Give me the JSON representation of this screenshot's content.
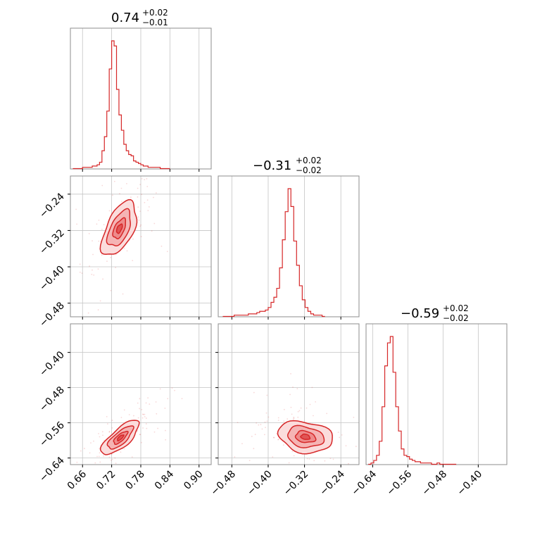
{
  "chart_data": {
    "type": "corner",
    "color": "#d62728",
    "parameters": [
      {
        "id": "p0",
        "range": [
          0.635,
          0.925
        ],
        "ticks": [
          0.66,
          0.72,
          0.78,
          0.84,
          0.9
        ],
        "tick_labels": [
          "0.66",
          "0.72",
          "0.78",
          "0.84",
          "0.90"
        ],
        "title": {
          "value": "0.74",
          "plus": "+0.02",
          "minus": "−0.01"
        },
        "hist": {
          "start": 0.64,
          "step": 0.005,
          "values": [
            0,
            0,
            0,
            0,
            0.01,
            0.01,
            0.01,
            0.01,
            0.02,
            0.02,
            0.03,
            0.05,
            0.14,
            0.25,
            0.45,
            0.78,
            1.0,
            0.96,
            0.62,
            0.42,
            0.3,
            0.19,
            0.14,
            0.11,
            0.1,
            0.06,
            0.05,
            0.04,
            0.03,
            0.02,
            0.02,
            0.01,
            0.01,
            0.01,
            0.01,
            0.01,
            0,
            0,
            0,
            0
          ]
        }
      },
      {
        "id": "p1",
        "range": [
          -0.51,
          -0.2
        ],
        "ticks": [
          -0.48,
          -0.4,
          -0.32,
          -0.24
        ],
        "tick_labels": [
          "−0.48",
          "−0.40",
          "−0.32",
          "−0.24"
        ],
        "title": {
          "value": "−0.31",
          "plus": "+0.02",
          "minus": "−0.02"
        },
        "hist": {
          "start": -0.5,
          "step": 0.00625,
          "values": [
            0,
            0,
            0,
            0,
            0.01,
            0.01,
            0.01,
            0.01,
            0.01,
            0.02,
            0.02,
            0.02,
            0.03,
            0.04,
            0.04,
            0.05,
            0.07,
            0.11,
            0.15,
            0.22,
            0.38,
            0.6,
            0.82,
            1.0,
            0.86,
            0.59,
            0.4,
            0.24,
            0.13,
            0.07,
            0.04,
            0.02,
            0.01,
            0.01,
            0.01,
            0
          ]
        }
      },
      {
        "id": "p2",
        "range": [
          -0.655,
          -0.335
        ],
        "ticks": [
          -0.64,
          -0.56,
          -0.48,
          -0.4
        ],
        "tick_labels": [
          "−0.64",
          "−0.56",
          "−0.48",
          "−0.40"
        ],
        "title": {
          "value": "−0.59",
          "plus": "+0.02",
          "minus": "−0.02"
        },
        "hist": {
          "start": -0.65,
          "step": 0.00625,
          "values": [
            0,
            0.01,
            0.03,
            0.07,
            0.18,
            0.45,
            0.77,
            0.95,
            1.0,
            0.72,
            0.45,
            0.26,
            0.12,
            0.07,
            0.06,
            0.04,
            0.03,
            0.02,
            0.02,
            0.01,
            0.01,
            0.01,
            0.01,
            0,
            0,
            0.01,
            0,
            0,
            0,
            0,
            0,
            0
          ]
        }
      }
    ],
    "pairs": [
      {
        "x": "p0",
        "y": "p1",
        "center": [
          0.736,
          -0.316
        ],
        "sd": [
          0.012,
          0.02
        ],
        "rho": 0.55
      },
      {
        "x": "p0",
        "y": "p2",
        "center": [
          0.738,
          -0.594
        ],
        "sd": [
          0.013,
          0.013
        ],
        "rho": 0.75
      },
      {
        "x": "p1",
        "y": "p2",
        "center": [
          -0.318,
          -0.592
        ],
        "sd": [
          0.02,
          0.012
        ],
        "rho": -0.2
      }
    ],
    "grid": true,
    "legend": "none"
  }
}
